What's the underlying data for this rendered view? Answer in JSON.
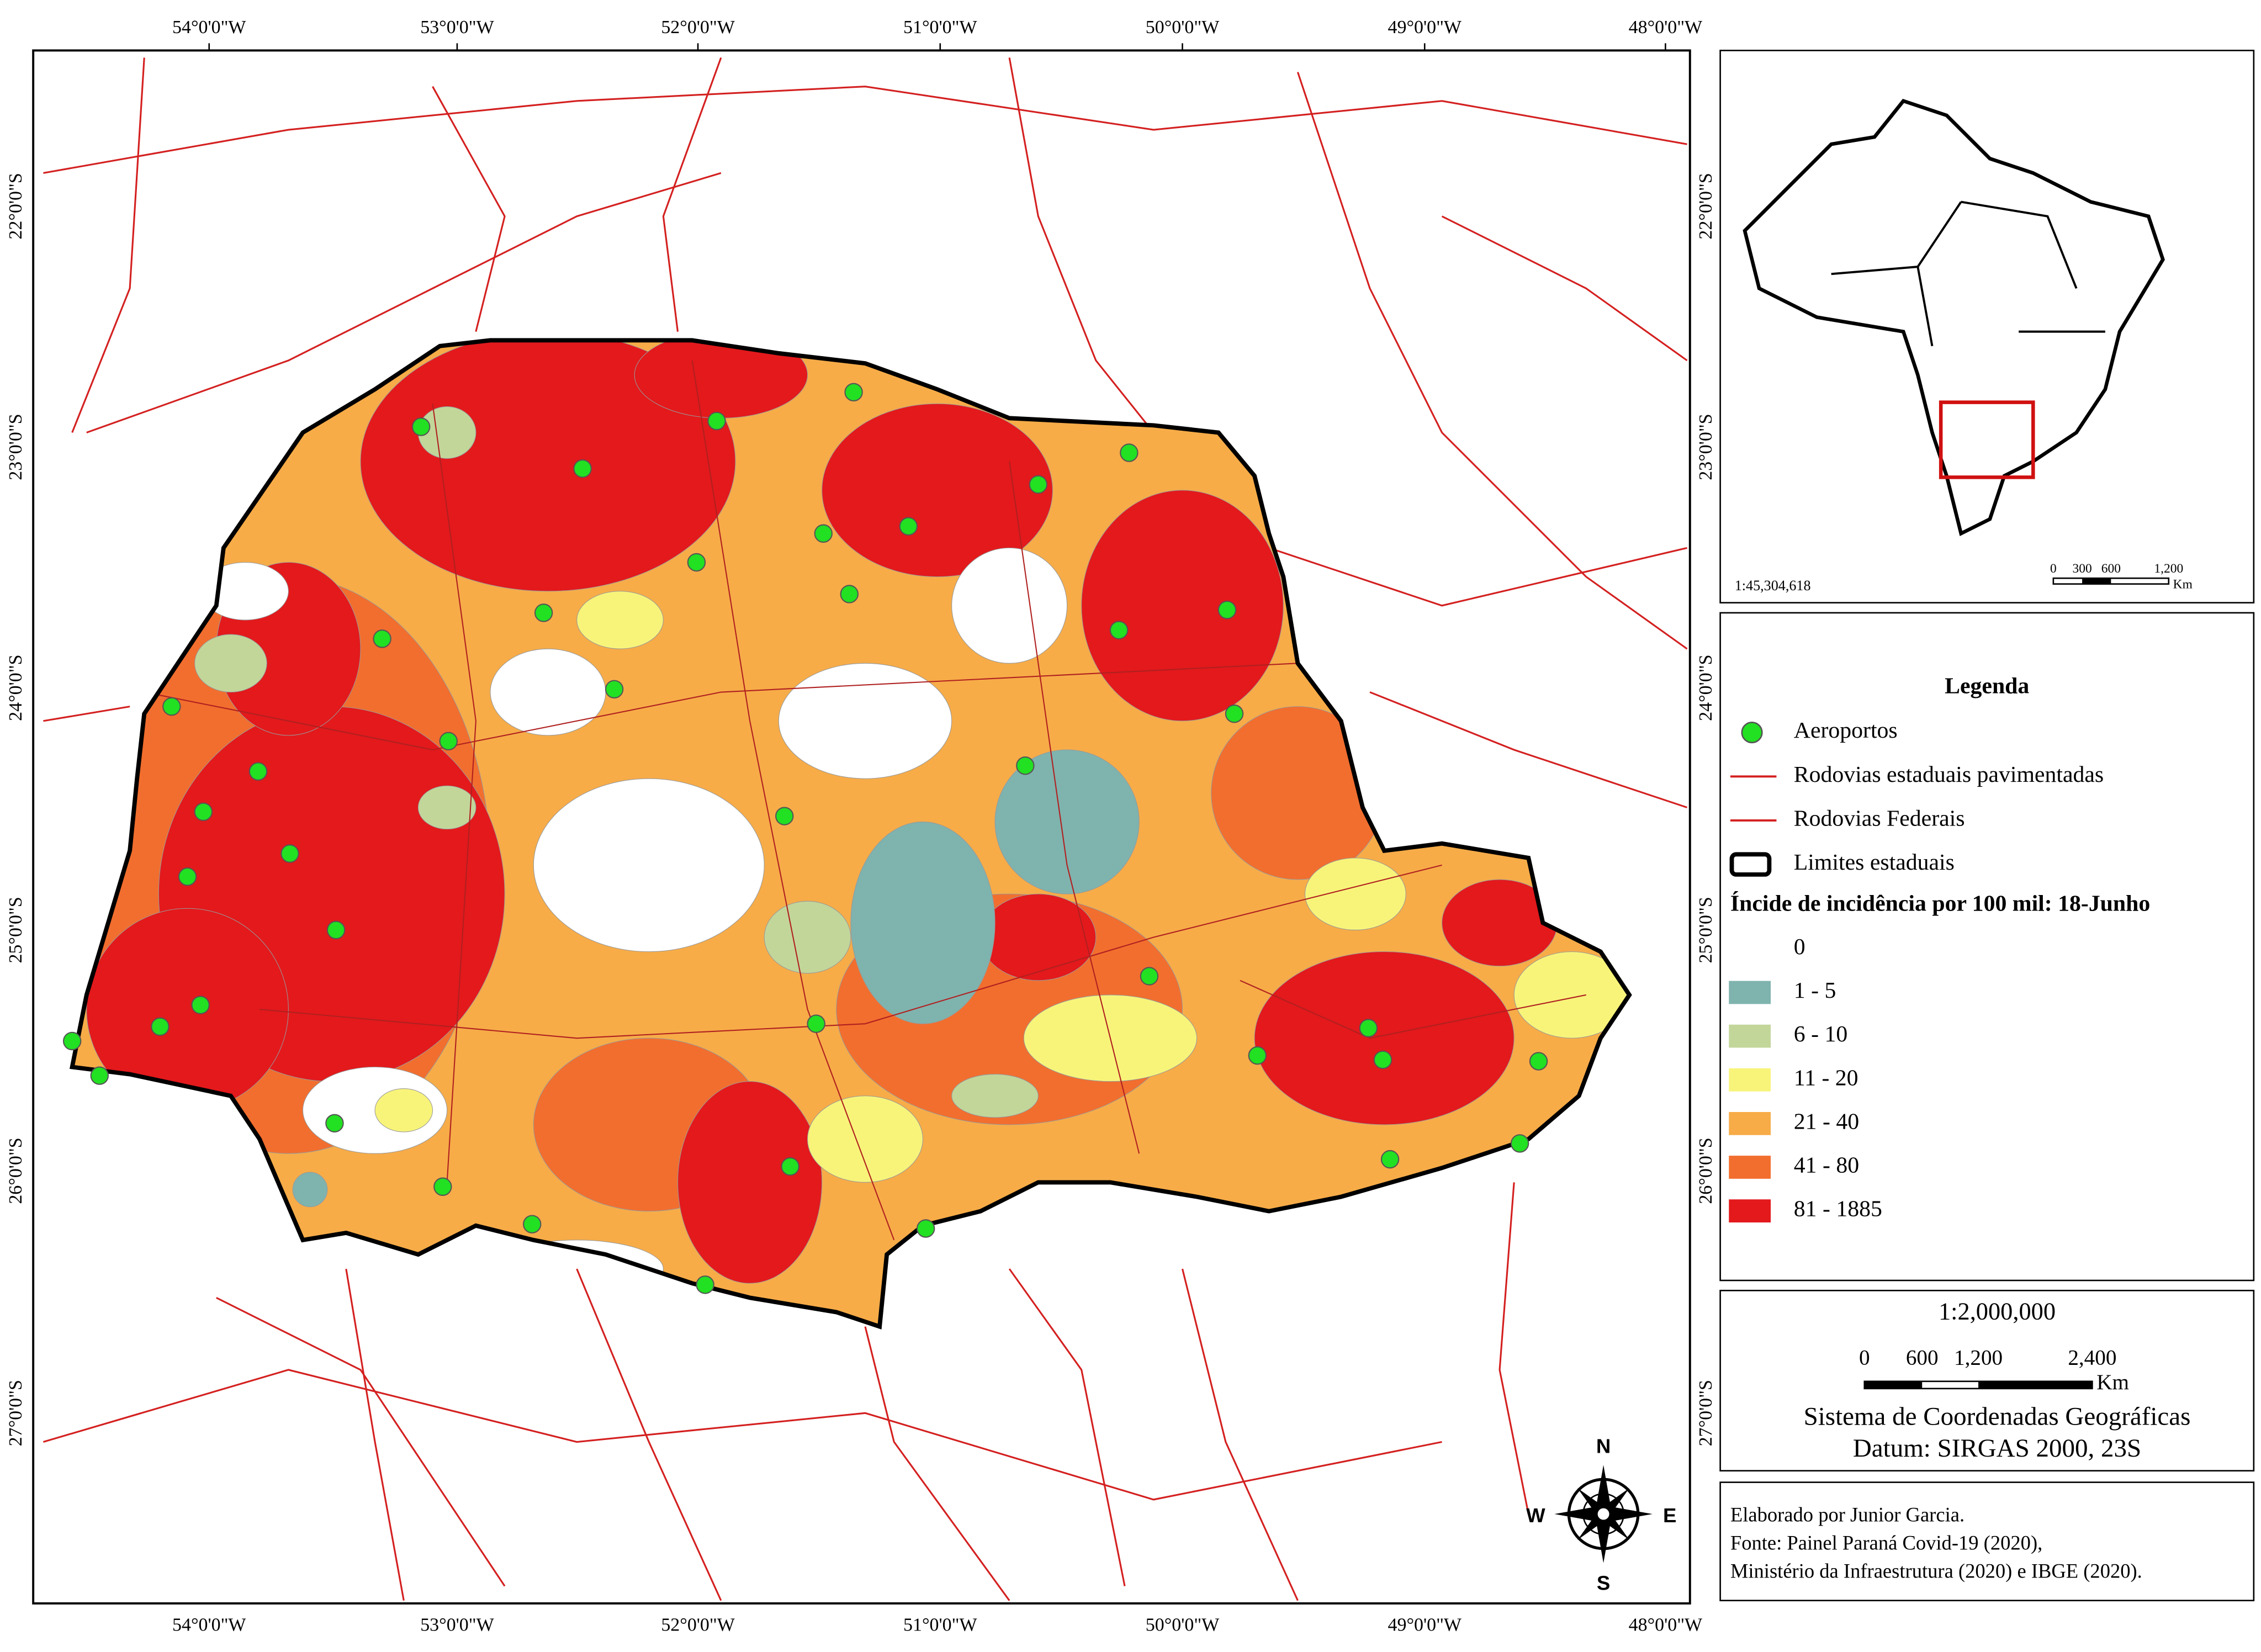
{
  "map": {
    "lon_labels": [
      "54°0'0\"W",
      "53°0'0\"W",
      "52°0'0\"W",
      "51°0'0\"W",
      "50°0'0\"W",
      "49°0'0\"W",
      "48°0'0\"W"
    ],
    "lat_labels": [
      "22°0'0\"S",
      "23°0'0\"S",
      "24°0'0\"S",
      "25°0'0\"S",
      "26°0'0\"S",
      "27°0'0\"S"
    ]
  },
  "compass": {
    "n": "N",
    "s": "S",
    "e": "E",
    "w": "W"
  },
  "inset": {
    "scale_ratio": "1:45,304,618",
    "scale_ticks": [
      "0",
      "300",
      "600",
      "1,200"
    ],
    "scale_unit": "Km"
  },
  "legend": {
    "title": "Legenda",
    "items": [
      {
        "label": "Aeroportos",
        "color": "#22e022"
      },
      {
        "label": "Rodovias estaduais pavimentadas",
        "color": "#d42020"
      },
      {
        "label": "Rodovias Federais",
        "color": "#d42020"
      },
      {
        "label": "Limites estaduais",
        "color": "#000000"
      }
    ],
    "class_title": "Íncide de incidência por 100 mil: 18-Junho",
    "classes": [
      {
        "label": "0",
        "color": "#ffffff"
      },
      {
        "label": "1 - 5",
        "color": "#7fb3ae"
      },
      {
        "label": "6 - 10",
        "color": "#c2d69a"
      },
      {
        "label": "11 - 20",
        "color": "#f8f47a"
      },
      {
        "label": "21 - 40",
        "color": "#f7ac48"
      },
      {
        "label": "41 - 80",
        "color": "#f26e2e"
      },
      {
        "label": "81 - 1885",
        "color": "#e3191c"
      }
    ]
  },
  "scale": {
    "ratio": "1:2,000,000",
    "ticks": [
      "0",
      "600",
      "1,200",
      "2,400"
    ],
    "unit": "Km",
    "crs": "Sistema de Coordenadas Geográficas",
    "datum": "Datum: SIRGAS 2000, 23S"
  },
  "credits": [
    "Elaborado por Junior Garcia.",
    "Fonte: Painel Paraná Covid-19 (2020),",
    "Ministério da Infraestrutura (2020) e IBGE (2020)."
  ]
}
